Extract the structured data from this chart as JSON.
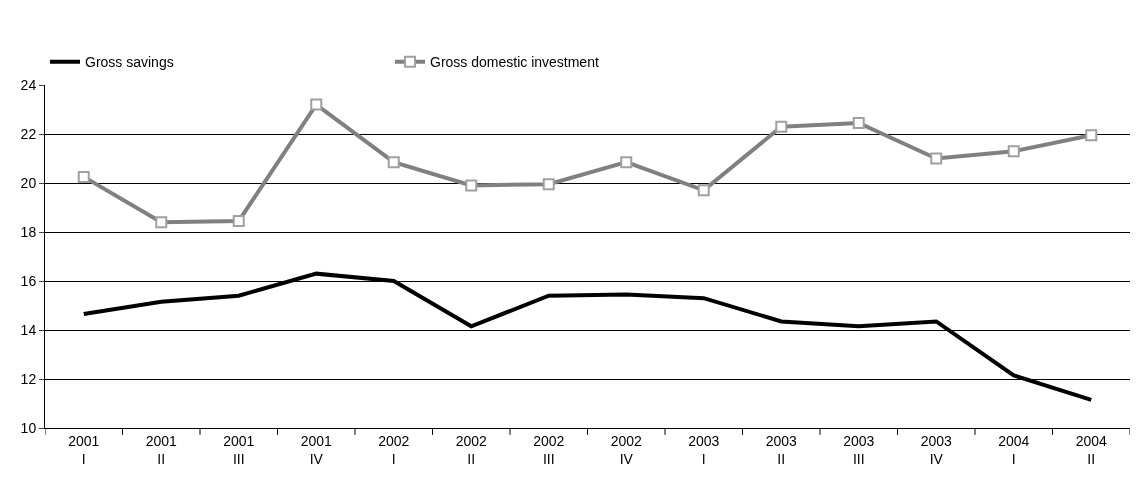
{
  "chart_data": {
    "type": "line",
    "categories": [
      "2001\nI",
      "2001\nII",
      "2001\nIII",
      "2001\nIV",
      "2002\nI",
      "2002\nII",
      "2002\nIII",
      "2002\nIV",
      "2003\nI",
      "2003\nII",
      "2003\nIII",
      "2003\nIV",
      "2004\nI",
      "2004\nII"
    ],
    "series": [
      {
        "name": "Gross savings",
        "color": "#000000",
        "marker": "none",
        "values": [
          14.65,
          15.15,
          15.4,
          16.3,
          16.0,
          14.15,
          15.4,
          15.45,
          15.3,
          14.35,
          14.15,
          14.35,
          12.15,
          11.15
        ]
      },
      {
        "name": "Gross domestic investment",
        "color": "#808080",
        "marker": "square",
        "values": [
          20.25,
          18.4,
          18.45,
          23.2,
          20.85,
          19.9,
          19.95,
          20.85,
          19.7,
          22.3,
          22.45,
          21.0,
          21.3,
          21.95
        ]
      }
    ],
    "ylim": [
      10,
      24
    ],
    "yticks": [
      10,
      12,
      14,
      16,
      18,
      20,
      22,
      24
    ],
    "grid": "y",
    "legend": "top left",
    "line_style": "solid"
  }
}
